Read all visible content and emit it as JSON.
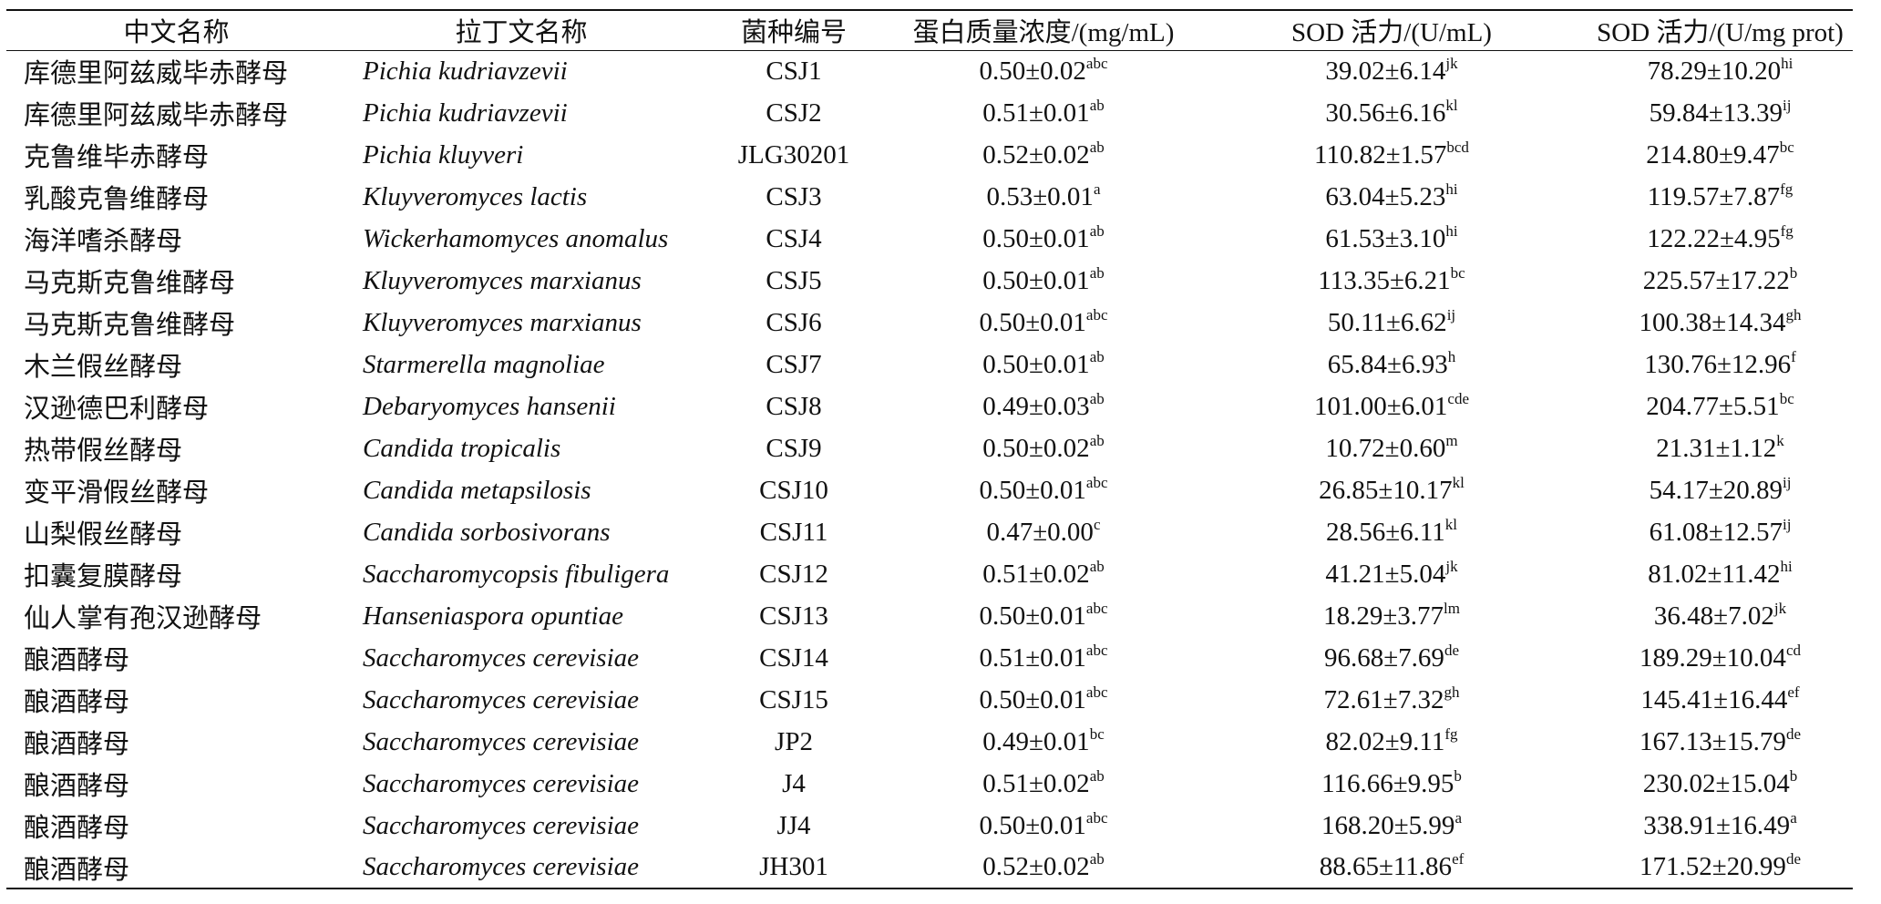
{
  "table": {
    "headers": [
      "中文名称",
      "拉丁文名称",
      "菌种编号",
      "蛋白质量浓度/(mg/mL)",
      "SOD 活力/(U/mL)",
      "SOD 活力/(U/mg prot)"
    ],
    "rows": [
      [
        "库德里阿兹威毕赤酵母",
        "Pichia kudriavzevii",
        "CSJ1",
        {
          "text": "0.50±0.02",
          "sup": "abc"
        },
        {
          "text": "39.02±6.14",
          "sup": "jk"
        },
        {
          "text": "78.29±10.20",
          "sup": "hi"
        }
      ],
      [
        "库德里阿兹威毕赤酵母",
        "Pichia kudriavzevii",
        "CSJ2",
        {
          "text": "0.51±0.01",
          "sup": "ab"
        },
        {
          "text": "30.56±6.16",
          "sup": "kl"
        },
        {
          "text": "59.84±13.39",
          "sup": "ij"
        }
      ],
      [
        "克鲁维毕赤酵母",
        "Pichia kluyveri",
        "JLG30201",
        {
          "text": "0.52±0.02",
          "sup": "ab"
        },
        {
          "text": "110.82±1.57",
          "sup": "bcd"
        },
        {
          "text": "214.80±9.47",
          "sup": "bc"
        }
      ],
      [
        "乳酸克鲁维酵母",
        "Kluyveromyces lactis",
        "CSJ3",
        {
          "text": "0.53±0.01",
          "sup": "a"
        },
        {
          "text": "63.04±5.23",
          "sup": "hi"
        },
        {
          "text": "119.57±7.87",
          "sup": "fg"
        }
      ],
      [
        "海洋嗜杀酵母",
        "Wickerhamomyces anomalus",
        "CSJ4",
        {
          "text": "0.50±0.01",
          "sup": "ab"
        },
        {
          "text": "61.53±3.10",
          "sup": "hi"
        },
        {
          "text": "122.22±4.95",
          "sup": "fg"
        }
      ],
      [
        "马克斯克鲁维酵母",
        "Kluyveromyces marxianus",
        "CSJ5",
        {
          "text": "0.50±0.01",
          "sup": "ab"
        },
        {
          "text": "113.35±6.21",
          "sup": "bc"
        },
        {
          "text": "225.57±17.22",
          "sup": "b"
        }
      ],
      [
        "马克斯克鲁维酵母",
        "Kluyveromyces marxianus",
        "CSJ6",
        {
          "text": "0.50±0.01",
          "sup": "abc"
        },
        {
          "text": "50.11±6.62",
          "sup": "ij"
        },
        {
          "text": "100.38±14.34",
          "sup": "gh"
        }
      ],
      [
        "木兰假丝酵母",
        "Starmerella magnoliae",
        "CSJ7",
        {
          "text": "0.50±0.01",
          "sup": "ab"
        },
        {
          "text": "65.84±6.93",
          "sup": "h"
        },
        {
          "text": "130.76±12.96",
          "sup": "f"
        }
      ],
      [
        "汉逊德巴利酵母",
        "Debaryomyces hansenii",
        "CSJ8",
        {
          "text": "0.49±0.03",
          "sup": "ab"
        },
        {
          "text": "101.00±6.01",
          "sup": "cde"
        },
        {
          "text": "204.77±5.51",
          "sup": "bc"
        }
      ],
      [
        "热带假丝酵母",
        "Candida tropicalis",
        "CSJ9",
        {
          "text": "0.50±0.02",
          "sup": "ab"
        },
        {
          "text": "10.72±0.60",
          "sup": "m"
        },
        {
          "text": "21.31±1.12",
          "sup": "k"
        }
      ],
      [
        "变平滑假丝酵母",
        "Candida metapsilosis",
        "CSJ10",
        {
          "text": "0.50±0.01",
          "sup": "abc"
        },
        {
          "text": "26.85±10.17",
          "sup": "kl"
        },
        {
          "text": "54.17±20.89",
          "sup": "ij"
        }
      ],
      [
        "山梨假丝酵母",
        "Candida sorbosivorans",
        "CSJ11",
        {
          "text": "0.47±0.00",
          "sup": "c"
        },
        {
          "text": "28.56±6.11",
          "sup": "kl"
        },
        {
          "text": "61.08±12.57",
          "sup": "ij"
        }
      ],
      [
        "扣囊复膜酵母",
        "Saccharomycopsis fibuligera",
        "CSJ12",
        {
          "text": "0.51±0.02",
          "sup": "ab"
        },
        {
          "text": "41.21±5.04",
          "sup": "jk"
        },
        {
          "text": "81.02±11.42",
          "sup": "hi"
        }
      ],
      [
        "仙人掌有孢汉逊酵母",
        "Hanseniaspora opuntiae",
        "CSJ13",
        {
          "text": "0.50±0.01",
          "sup": "abc"
        },
        {
          "text": "18.29±3.77",
          "sup": "lm"
        },
        {
          "text": "36.48±7.02",
          "sup": "jk"
        }
      ],
      [
        "酿酒酵母",
        "Saccharomyces cerevisiae",
        "CSJ14",
        {
          "text": "0.51±0.01",
          "sup": "abc"
        },
        {
          "text": "96.68±7.69",
          "sup": "de"
        },
        {
          "text": "189.29±10.04",
          "sup": "cd"
        }
      ],
      [
        "酿酒酵母",
        "Saccharomyces cerevisiae",
        "CSJ15",
        {
          "text": "0.50±0.01",
          "sup": "abc"
        },
        {
          "text": "72.61±7.32",
          "sup": "gh"
        },
        {
          "text": "145.41±16.44",
          "sup": "ef"
        }
      ],
      [
        "酿酒酵母",
        "Saccharomyces cerevisiae",
        "JP2",
        {
          "text": "0.49±0.01",
          "sup": "bc"
        },
        {
          "text": "82.02±9.11",
          "sup": "fg"
        },
        {
          "text": "167.13±15.79",
          "sup": "de"
        }
      ],
      [
        "酿酒酵母",
        "Saccharomyces cerevisiae",
        "J4",
        {
          "text": "0.51±0.02",
          "sup": "ab"
        },
        {
          "text": "116.66±9.95",
          "sup": "b"
        },
        {
          "text": "230.02±15.04",
          "sup": "b"
        }
      ],
      [
        "酿酒酵母",
        "Saccharomyces cerevisiae",
        "JJ4",
        {
          "text": "0.50±0.01",
          "sup": "abc"
        },
        {
          "text": "168.20±5.99",
          "sup": "a"
        },
        {
          "text": "338.91±16.49",
          "sup": "a"
        }
      ],
      [
        "酿酒酵母",
        "Saccharomyces cerevisiae",
        "JH301",
        {
          "text": "0.52±0.02",
          "sup": "ab"
        },
        {
          "text": "88.65±11.86",
          "sup": "ef"
        },
        {
          "text": "171.52±20.99",
          "sup": "de"
        }
      ]
    ]
  }
}
